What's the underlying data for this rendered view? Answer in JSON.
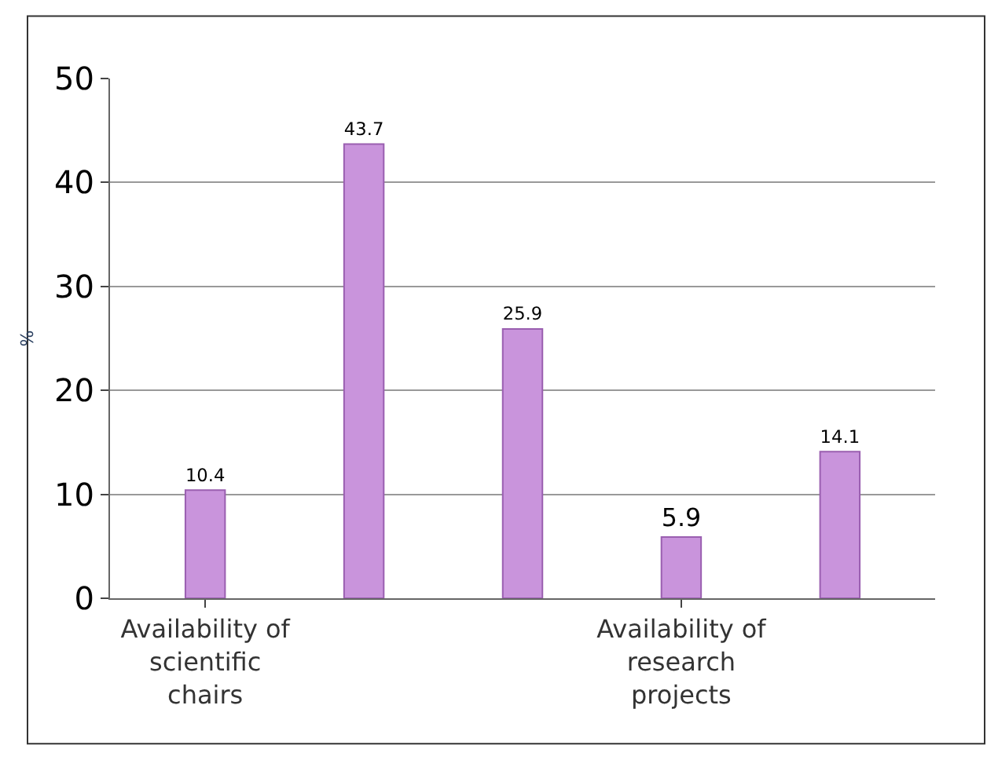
{
  "chart_data": {
    "type": "bar",
    "ylabel": "%",
    "categories": [
      "Availability of scientific chairs",
      null,
      null,
      "Availability of research projects",
      null
    ],
    "values": [
      10.4,
      43.7,
      25.9,
      5.9,
      14.1
    ],
    "color": "#c994dc",
    "ylim": [
      0,
      50
    ],
    "yticks": [
      0,
      10,
      20,
      30,
      40,
      50
    ],
    "grid": "y",
    "data_labels": true
  }
}
